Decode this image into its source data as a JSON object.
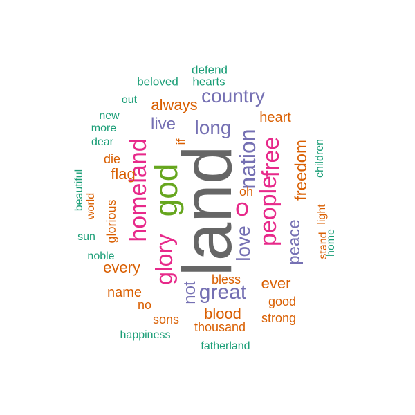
{
  "palette": {
    "gray": "#666666",
    "green": "#66a61e",
    "pink": "#e7298a",
    "purple": "#7570b3",
    "orange": "#d95f02",
    "teal": "#1b9e77"
  },
  "words": [
    {
      "text": "land",
      "color": "gray"
    },
    {
      "text": "god",
      "color": "green"
    },
    {
      "text": "homeland",
      "color": "pink"
    },
    {
      "text": "glory",
      "color": "pink"
    },
    {
      "text": "people",
      "color": "pink"
    },
    {
      "text": "free",
      "color": "pink"
    },
    {
      "text": "o",
      "color": "pink"
    },
    {
      "text": "nation",
      "color": "purple"
    },
    {
      "text": "love",
      "color": "purple"
    },
    {
      "text": "great",
      "color": "purple"
    },
    {
      "text": "country",
      "color": "purple"
    },
    {
      "text": "long",
      "color": "purple"
    },
    {
      "text": "live",
      "color": "purple"
    },
    {
      "text": "peace",
      "color": "purple"
    },
    {
      "text": "not",
      "color": "purple"
    },
    {
      "text": "freedom",
      "color": "orange"
    },
    {
      "text": "always",
      "color": "orange"
    },
    {
      "text": "flag",
      "color": "orange"
    },
    {
      "text": "every",
      "color": "orange"
    },
    {
      "text": "blood",
      "color": "orange"
    },
    {
      "text": "ever",
      "color": "orange"
    },
    {
      "text": "name",
      "color": "orange"
    },
    {
      "text": "heart",
      "color": "orange"
    },
    {
      "text": "die",
      "color": "orange"
    },
    {
      "text": "if",
      "color": "orange"
    },
    {
      "text": "oh",
      "color": "orange"
    },
    {
      "text": "bless",
      "color": "orange"
    },
    {
      "text": "glorious",
      "color": "orange"
    },
    {
      "text": "thousand",
      "color": "orange"
    },
    {
      "text": "strong",
      "color": "orange"
    },
    {
      "text": "good",
      "color": "orange"
    },
    {
      "text": "sons",
      "color": "orange"
    },
    {
      "text": "no",
      "color": "orange"
    },
    {
      "text": "stand",
      "color": "orange"
    },
    {
      "text": "light",
      "color": "orange"
    },
    {
      "text": "world",
      "color": "orange"
    },
    {
      "text": "beloved",
      "color": "teal"
    },
    {
      "text": "hearts",
      "color": "teal"
    },
    {
      "text": "defend",
      "color": "teal"
    },
    {
      "text": "out",
      "color": "teal"
    },
    {
      "text": "new",
      "color": "teal"
    },
    {
      "text": "more",
      "color": "teal"
    },
    {
      "text": "dear",
      "color": "teal"
    },
    {
      "text": "beautiful",
      "color": "teal"
    },
    {
      "text": "sun",
      "color": "teal"
    },
    {
      "text": "noble",
      "color": "teal"
    },
    {
      "text": "children",
      "color": "teal"
    },
    {
      "text": "home",
      "color": "teal"
    },
    {
      "text": "happiness",
      "color": "teal"
    },
    {
      "text": "fatherland",
      "color": "teal"
    }
  ]
}
